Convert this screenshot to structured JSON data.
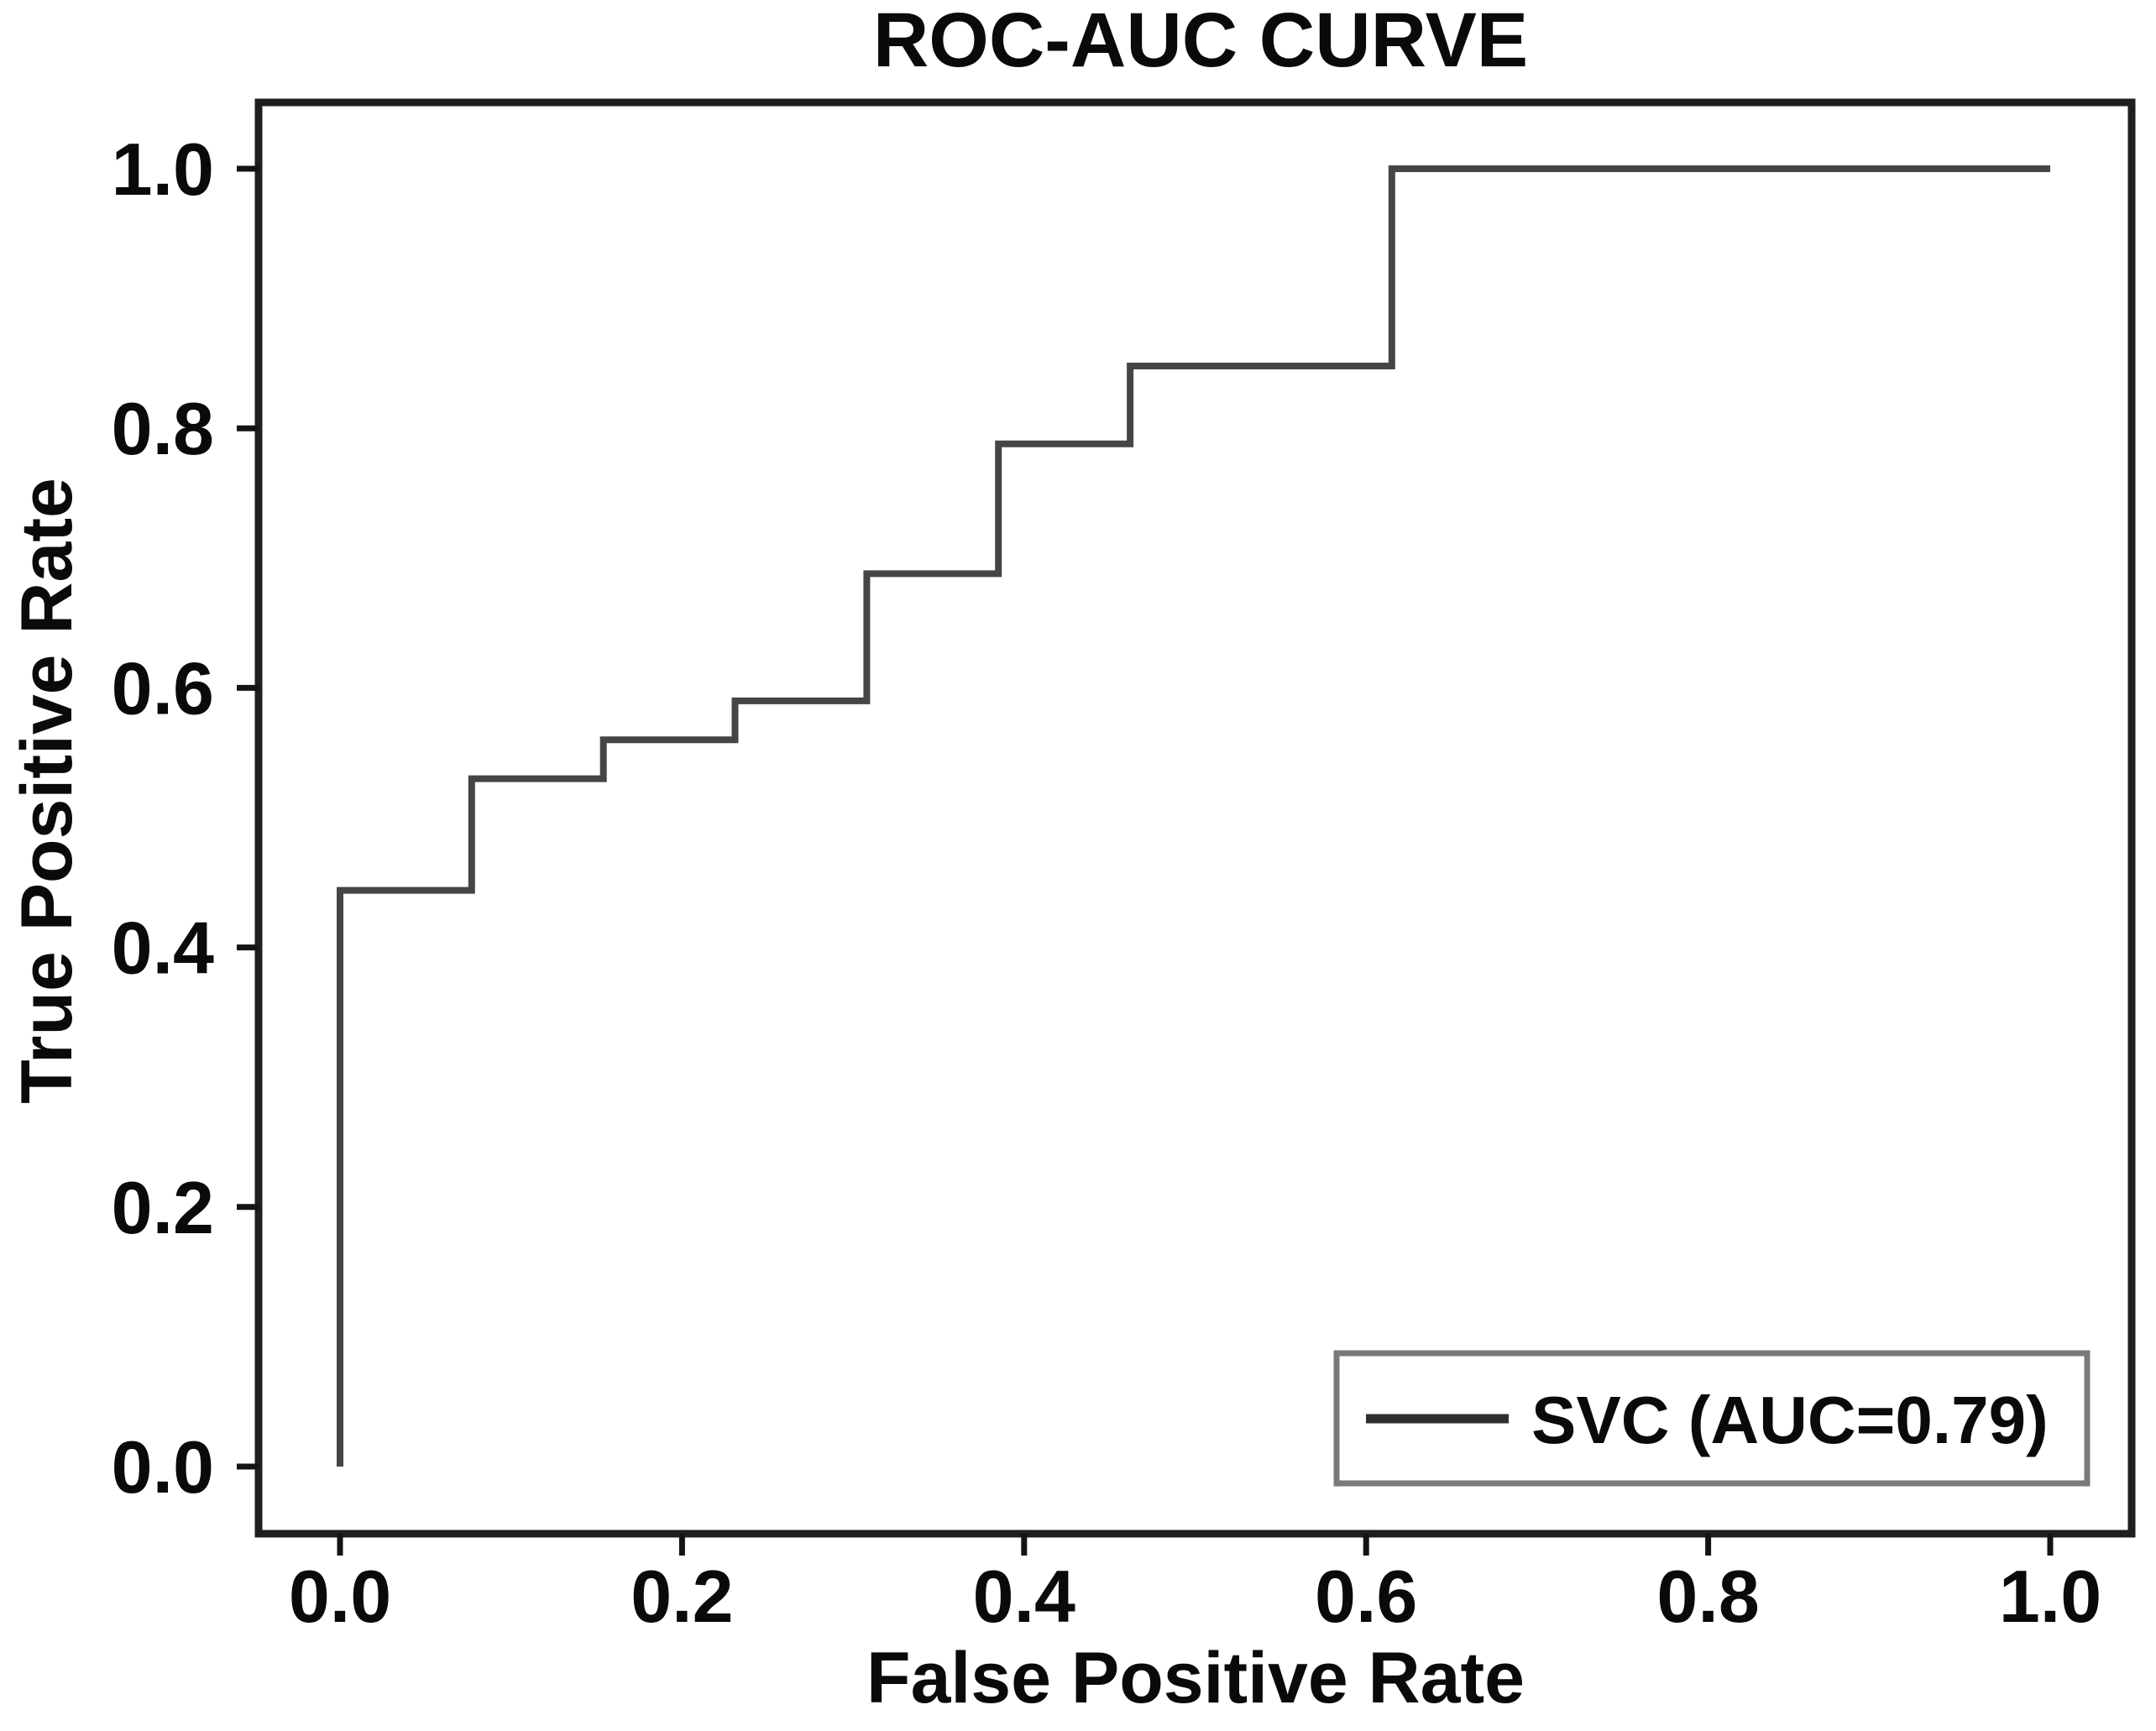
{
  "title": "ROC-AUC CURVE",
  "axes": {
    "xlabel": "False Positive Rate",
    "ylabel": "True Positive Rate",
    "x_tick_labels": [
      "0.0",
      "0.2",
      "0.4",
      "0.6",
      "0.8",
      "1.0"
    ],
    "y_tick_labels": [
      "0.0",
      "0.2",
      "0.4",
      "0.6",
      "0.8",
      "1.0"
    ]
  },
  "legend": {
    "label": "SVC (AUC=0.79)"
  },
  "colors": {
    "background": "#ffffff",
    "spine": "#1f1f1f",
    "tick": "#141414",
    "text": "#0a0a0a",
    "curve": "#454545",
    "legend_border": "#7a7a7a",
    "legend_fill": "#ffffff",
    "legend_line": "#2e2e2e"
  },
  "chart_data": {
    "type": "line",
    "subtype": "roc_step_curve",
    "title": "ROC-AUC CURVE",
    "xlabel": "False Positive Rate",
    "ylabel": "True Positive Rate",
    "xlim": [
      -0.048,
      1.048
    ],
    "ylim": [
      -0.052,
      1.051
    ],
    "x_ticks": [
      0.0,
      0.2,
      0.4,
      0.6,
      0.8,
      1.0
    ],
    "y_ticks": [
      0.0,
      0.2,
      0.4,
      0.6,
      0.8,
      1.0
    ],
    "grid": false,
    "legend_position": "lower right",
    "series": [
      {
        "name": "SVC",
        "auc": 0.79,
        "points": [
          [
            0.0,
            0.0
          ],
          [
            0.0,
            0.444
          ],
          [
            0.077,
            0.444
          ],
          [
            0.077,
            0.53
          ],
          [
            0.154,
            0.53
          ],
          [
            0.154,
            0.56
          ],
          [
            0.231,
            0.56
          ],
          [
            0.231,
            0.59
          ],
          [
            0.308,
            0.59
          ],
          [
            0.308,
            0.688
          ],
          [
            0.385,
            0.688
          ],
          [
            0.385,
            0.788
          ],
          [
            0.462,
            0.788
          ],
          [
            0.462,
            0.848
          ],
          [
            0.615,
            0.848
          ],
          [
            0.615,
            1.0
          ],
          [
            1.0,
            1.0
          ]
        ]
      }
    ]
  }
}
